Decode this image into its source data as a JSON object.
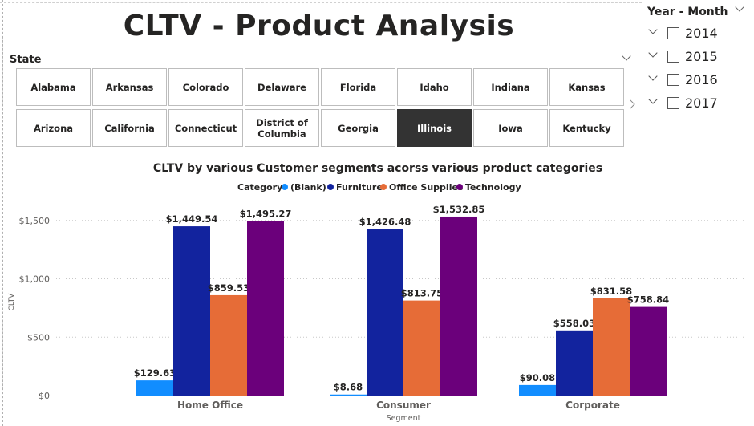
{
  "title": "CLTV - Product Analysis",
  "state_slicer": {
    "label": "State",
    "tiles": [
      "Alabama",
      "Arkansas",
      "Colorado",
      "Delaware",
      "Florida",
      "Idaho",
      "Indiana",
      "Kansas",
      "Arizona",
      "California",
      "Connecticut",
      "District of Columbia",
      "Georgia",
      "Illinois",
      "Iowa",
      "Kentucky"
    ],
    "selected": "Illinois"
  },
  "year_slicer": {
    "title": "Year - Month",
    "items": [
      "2014",
      "2015",
      "2016",
      "2017"
    ]
  },
  "chart_data": {
    "type": "bar",
    "title": "CLTV by various Customer segments acorss various product categories",
    "legend_title": "Category",
    "legend_position": "top-center",
    "xlabel": "Segment",
    "ylabel": "CLTV",
    "categories": [
      "Home Office",
      "Consumer",
      "Corporate"
    ],
    "ylim": [
      0,
      1600
    ],
    "yticks": [
      0,
      500,
      1000,
      1500
    ],
    "ytick_labels": [
      "$0",
      "$500",
      "$1,000",
      "$1,500"
    ],
    "grid": true,
    "series": [
      {
        "name": "(Blank)",
        "color": "#118DFF",
        "values": [
          129.63,
          8.68,
          90.08
        ],
        "labels": [
          "$129.63",
          "$8.68",
          "$90.08"
        ]
      },
      {
        "name": "Furniture",
        "color": "#12239E",
        "values": [
          1449.54,
          1426.48,
          558.03
        ],
        "labels": [
          "$1,449.54",
          "$1,426.48",
          "$558.03"
        ]
      },
      {
        "name": "Office Supplies",
        "color": "#E66C37",
        "values": [
          859.53,
          813.75,
          831.58
        ],
        "labels": [
          "$859.53",
          "$813.75",
          "$831.58"
        ]
      },
      {
        "name": "Technology",
        "color": "#6B007B",
        "values": [
          1495.27,
          1532.85,
          758.84
        ],
        "labels": [
          "$1,495.27",
          "$1,532.85",
          "$758.84"
        ]
      }
    ]
  }
}
